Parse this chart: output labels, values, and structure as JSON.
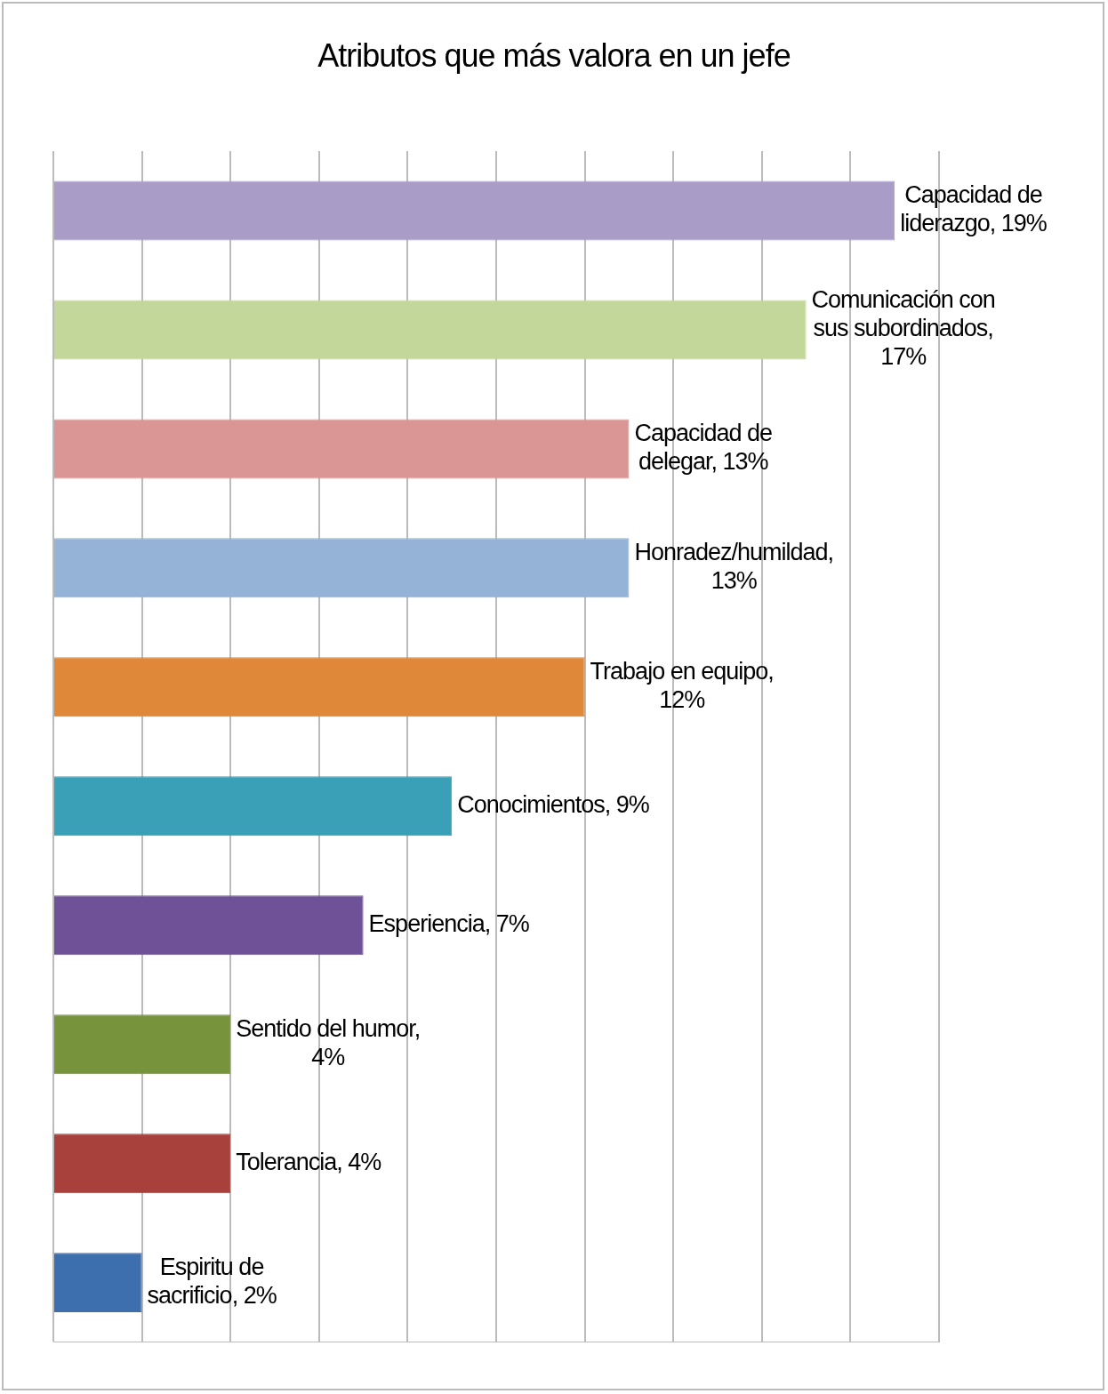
{
  "chart_data": {
    "type": "bar",
    "orientation": "horizontal",
    "title": "Atributos que más valora en un jefe",
    "categories": [
      null,
      null,
      null,
      null,
      null,
      null,
      null,
      null,
      null,
      null
    ],
    "values": [
      19,
      17,
      13,
      13,
      12,
      9,
      7,
      4,
      4,
      2
    ],
    "colors": [
      "#a99cc7",
      "#c3d79b",
      "#d99694",
      "#95b3d7",
      "#e0883a",
      "#3aa0b7",
      "#6e5196",
      "#77933c",
      "#a8403c",
      "#3d6fae"
    ],
    "value_labels": [
      "Capacidad de liderazgo, 19%",
      "Comunicación con sus subordinados, 17%",
      "Capacidad de delegar, 13%",
      "Honradez/humildad, 13%",
      "Trabajo en equipo, 12%",
      "Conocimientos, 9%",
      "Esperiencia, 7%",
      "Sentido del humor, 4%",
      "Tolerancia, 4%",
      "Espiritu de sacrificio, 2%"
    ],
    "xlim": [
      0,
      20
    ],
    "xticks": [
      {
        "value": 0,
        "label": null
      },
      {
        "value": 2,
        "label": null
      },
      {
        "value": 4,
        "label": null
      },
      {
        "value": 6,
        "label": null
      },
      {
        "value": 8,
        "label": null
      },
      {
        "value": 10,
        "label": null
      },
      {
        "value": 12,
        "label": null
      },
      {
        "value": 14,
        "label": null
      },
      {
        "value": 16,
        "label": null
      },
      {
        "value": 18,
        "label": null
      },
      {
        "value": 20,
        "label": null
      }
    ],
    "grid": "x",
    "legend": false
  }
}
